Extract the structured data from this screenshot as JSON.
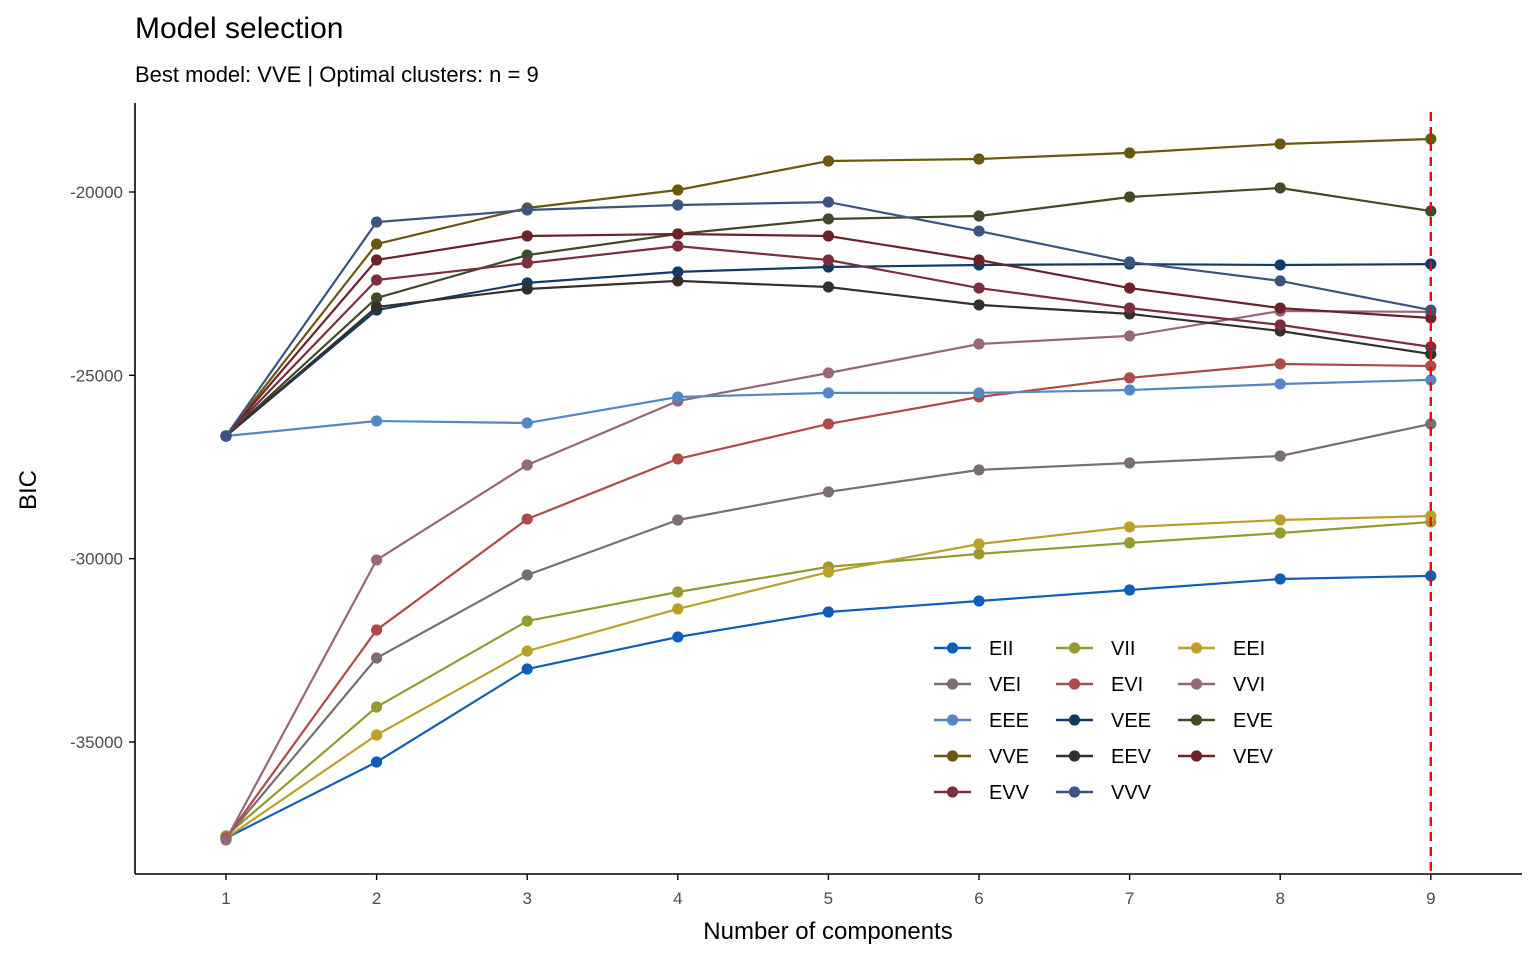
{
  "chart_data": {
    "type": "line",
    "title": "Model selection",
    "subtitle": "Best model: VVE | Optimal clusters: n = 9",
    "xlabel": "Number of components",
    "ylabel": "BIC",
    "x": [
      1,
      2,
      3,
      4,
      5,
      6,
      7,
      8,
      9
    ],
    "x_ticks": [
      "1",
      "2",
      "3",
      "4",
      "5",
      "6",
      "7",
      "8",
      "9"
    ],
    "y_ticks": [
      -35000,
      -30000,
      -25000,
      -20000
    ],
    "y_tick_labels": [
      "-35000",
      "-30000",
      "-25000",
      "-20000"
    ],
    "xlim": [
      0.4,
      9.6
    ],
    "ylim": [
      -38500,
      -17400
    ],
    "grid": false,
    "legend_position": "bottom-right-inside",
    "optimal_line": {
      "x": 9,
      "color": "#ff0000",
      "style": "dashed"
    },
    "series": [
      {
        "name": "EII",
        "color": "#0f5fb8",
        "values": [
          -37620,
          -35545,
          -33010,
          -32135,
          -31455,
          -31155,
          -30855,
          -30555,
          -30470
        ]
      },
      {
        "name": "VII",
        "color": "#959a31",
        "values": [
          -37560,
          -34045,
          -31700,
          -30910,
          -30225,
          -29870,
          -29570,
          -29300,
          -29000
        ]
      },
      {
        "name": "EEI",
        "color": "#bd9f2c",
        "values": [
          -37620,
          -34810,
          -32520,
          -31370,
          -30365,
          -29600,
          -29135,
          -28945,
          -28835
        ]
      },
      {
        "name": "VEI",
        "color": "#7a6e6e",
        "values": [
          -37620,
          -32710,
          -30445,
          -28945,
          -28180,
          -27580,
          -27390,
          -27200,
          -26325
        ]
      },
      {
        "name": "EVI",
        "color": "#ae4a47",
        "values": [
          -37620,
          -31945,
          -28920,
          -27280,
          -26325,
          -25590,
          -25070,
          -24690,
          -24745
        ]
      },
      {
        "name": "VVI",
        "color": "#96677c",
        "values": [
          -37670,
          -30035,
          -27445,
          -25700,
          -24935,
          -24145,
          -23925,
          -23245,
          -23270
        ]
      },
      {
        "name": "EEE",
        "color": "#5687c5",
        "values": [
          -26655,
          -26245,
          -26300,
          -25590,
          -25480,
          -25480,
          -25400,
          -25235,
          -25125
        ]
      },
      {
        "name": "VEE",
        "color": "#113a66",
        "values": [
          -26655,
          -23220,
          -22480,
          -22180,
          -22045,
          -21990,
          -21965,
          -21990,
          -21965
        ]
      },
      {
        "name": "EVE",
        "color": "#3f4b26",
        "values": [
          -26655,
          -22890,
          -21720,
          -21145,
          -20735,
          -20655,
          -20135,
          -19890,
          -20520
        ]
      },
      {
        "name": "VVE",
        "color": "#6a580e",
        "values": [
          -26655,
          -21420,
          -20435,
          -19945,
          -19155,
          -19100,
          -18935,
          -18690,
          -18555
        ]
      },
      {
        "name": "EEV",
        "color": "#33302b",
        "values": [
          -26655,
          -23135,
          -22645,
          -22425,
          -22590,
          -23080,
          -23325,
          -23790,
          -24420
        ]
      },
      {
        "name": "VEV",
        "color": "#6b2329",
        "values": [
          -26655,
          -21855,
          -21200,
          -21145,
          -21200,
          -21855,
          -22620,
          -23165,
          -23435
        ]
      },
      {
        "name": "EVV",
        "color": "#7a2e3e",
        "values": [
          -26655,
          -22400,
          -21935,
          -21475,
          -21855,
          -22620,
          -23165,
          -23625,
          -24225
        ]
      },
      {
        "name": "VVV",
        "color": "#3a5580",
        "values": [
          -26655,
          -20820,
          -20490,
          -20355,
          -20275,
          -21065,
          -21910,
          -22425,
          -23220
        ]
      }
    ]
  }
}
